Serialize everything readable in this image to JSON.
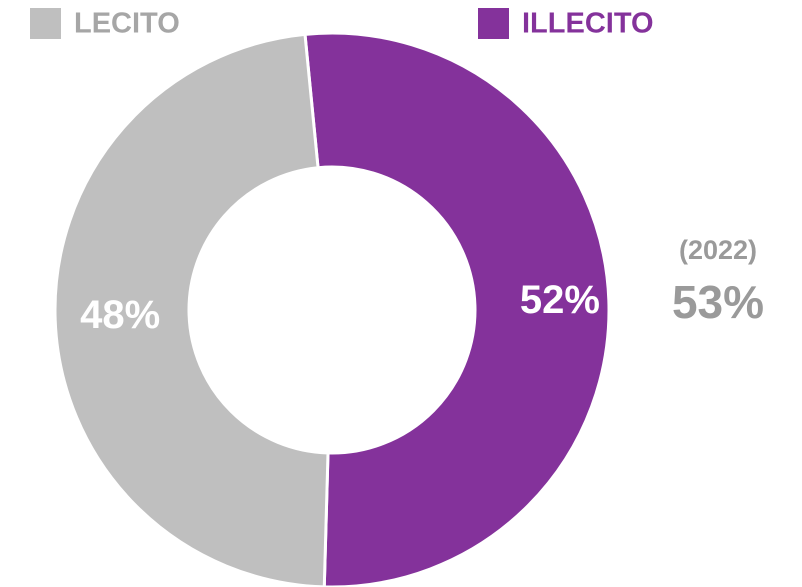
{
  "chart_data": {
    "type": "donut",
    "categories": [
      "LECITO",
      "ILLECITO"
    ],
    "values": [
      48,
      52
    ],
    "value_labels": [
      "48%",
      "52%"
    ],
    "colors": [
      "#bfbfbf",
      "#84329b"
    ],
    "annotations": [
      "(2022)",
      "53%"
    ]
  }
}
